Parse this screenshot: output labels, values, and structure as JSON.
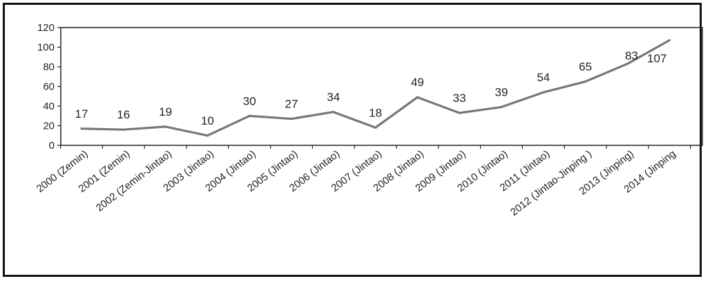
{
  "chart_data": {
    "type": "line",
    "title": "",
    "xlabel": "",
    "ylabel": "",
    "ylim": [
      0,
      120
    ],
    "yticks": [
      0,
      20,
      40,
      60,
      80,
      100,
      120
    ],
    "grid": false,
    "legend": "none",
    "categories": [
      "2000 (Zemin)",
      "2001 (Zemin)",
      "2002 (Zemin-Jintao)",
      "2003 (Jintao)",
      "2004 (Jintao)",
      "2005 (Jintao)",
      "2006 (Jintao)",
      "2007 (Jintao)",
      "2008 (Jintao)",
      "2009 (Jintao)",
      "2010 (Jintao)",
      "2011 (Jintao)",
      "2012 (Jintao-Jinping )",
      "2013 (Jinping)",
      "2014 (Jinping"
    ],
    "series": [
      {
        "values": [
          17,
          16,
          19,
          10,
          30,
          27,
          34,
          18,
          49,
          33,
          39,
          54,
          65,
          83,
          107
        ],
        "color": "#777777"
      }
    ]
  }
}
